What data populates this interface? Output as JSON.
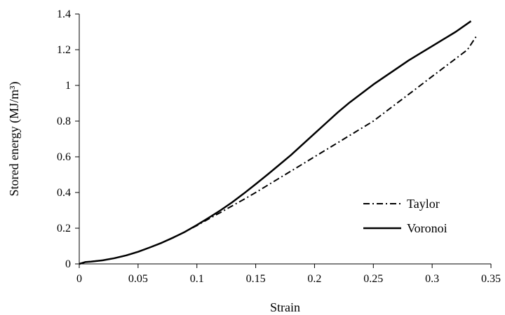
{
  "chart_data": {
    "type": "line",
    "title": "",
    "xlabel": "Strain",
    "ylabel": "Stored energy (MJ/m³)",
    "xlim": [
      0,
      0.35
    ],
    "ylim": [
      0,
      1.4
    ],
    "x_ticks": [
      0,
      0.05,
      0.1,
      0.15,
      0.2,
      0.25,
      0.3,
      0.35
    ],
    "x_tick_labels": [
      "0",
      "0.05",
      "0.1",
      "0.15",
      "0.2",
      "0.25",
      "0.3",
      "0.35"
    ],
    "y_ticks": [
      0,
      0.2,
      0.4,
      0.6,
      0.8,
      1.0,
      1.2,
      1.4
    ],
    "y_tick_labels": [
      "0",
      "0.2",
      "0.4",
      "0.6",
      "0.8",
      "1",
      "1.2",
      "1.4"
    ],
    "grid": false,
    "legend_position": "lower-right",
    "series": [
      {
        "name": "Taylor",
        "line_style": "dash-dot",
        "color": "#000000",
        "x": [
          0,
          0.005,
          0.01,
          0.02,
          0.03,
          0.04,
          0.05,
          0.06,
          0.07,
          0.08,
          0.09,
          0.1,
          0.11,
          0.12,
          0.13,
          0.14,
          0.15,
          0.16,
          0.17,
          0.18,
          0.19,
          0.2,
          0.21,
          0.22,
          0.23,
          0.24,
          0.25,
          0.26,
          0.27,
          0.28,
          0.29,
          0.3,
          0.31,
          0.32,
          0.33,
          0.338
        ],
        "y": [
          0,
          0.01,
          0.013,
          0.02,
          0.032,
          0.048,
          0.068,
          0.092,
          0.118,
          0.148,
          0.18,
          0.215,
          0.252,
          0.288,
          0.325,
          0.362,
          0.4,
          0.44,
          0.48,
          0.52,
          0.56,
          0.6,
          0.64,
          0.68,
          0.72,
          0.76,
          0.8,
          0.85,
          0.9,
          0.95,
          1.0,
          1.05,
          1.1,
          1.15,
          1.2,
          1.28
        ]
      },
      {
        "name": "Voronoi",
        "line_style": "solid",
        "color": "#000000",
        "x": [
          0,
          0.005,
          0.01,
          0.02,
          0.03,
          0.04,
          0.05,
          0.06,
          0.07,
          0.08,
          0.09,
          0.1,
          0.11,
          0.12,
          0.13,
          0.14,
          0.15,
          0.16,
          0.17,
          0.18,
          0.19,
          0.2,
          0.21,
          0.22,
          0.23,
          0.24,
          0.25,
          0.26,
          0.27,
          0.28,
          0.29,
          0.3,
          0.31,
          0.32,
          0.333
        ],
        "y": [
          0,
          0.01,
          0.013,
          0.02,
          0.032,
          0.048,
          0.068,
          0.092,
          0.118,
          0.148,
          0.18,
          0.218,
          0.258,
          0.3,
          0.345,
          0.395,
          0.447,
          0.5,
          0.555,
          0.61,
          0.67,
          0.73,
          0.79,
          0.85,
          0.905,
          0.955,
          1.005,
          1.05,
          1.095,
          1.14,
          1.18,
          1.22,
          1.26,
          1.3,
          1.36
        ]
      }
    ]
  }
}
